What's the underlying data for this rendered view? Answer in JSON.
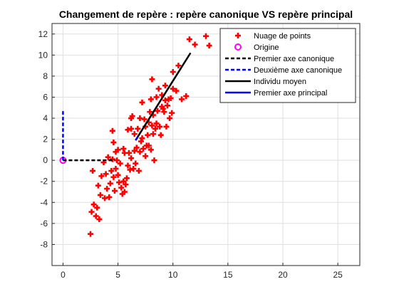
{
  "colors": {
    "points": "#ff0000",
    "origin": "#ff00ff",
    "canonical_axis_1": "#000000",
    "canonical_axis_2": "#0000ff",
    "mean_individual": "#000000",
    "principal_axis_1": "#0000ff"
  },
  "chart_data": {
    "type": "scatter",
    "title": "Changement de repère : repère canonique VS repère principal",
    "xlabel": "",
    "ylabel": "",
    "xlim": [
      -1,
      27
    ],
    "ylim": [
      -10,
      13
    ],
    "xticks": [
      0,
      5,
      10,
      15,
      20,
      25
    ],
    "yticks": [
      -8,
      -6,
      -4,
      -2,
      0,
      2,
      4,
      6,
      8,
      10,
      12
    ],
    "grid": true,
    "legend_position": "top-right",
    "legend": [
      {
        "label": "Nuage de points",
        "style": "plus",
        "color": "#ff0000"
      },
      {
        "label": "Origine",
        "style": "circle",
        "color": "#ff00ff"
      },
      {
        "label": "Premier axe canonique",
        "style": "dashed",
        "color": "#000000"
      },
      {
        "label": "Deuxième axe canonique",
        "style": "dashed",
        "color": "#0000ff"
      },
      {
        "label": "Individu moyen",
        "style": "solid",
        "color": "#000000"
      },
      {
        "label": "Premier axe principal",
        "style": "solid",
        "color": "#0000ff"
      }
    ],
    "series": [
      {
        "name": "Nuage de points",
        "style": "plus",
        "points": [
          [
            2.5,
            -7.0
          ],
          [
            2.6,
            -4.9
          ],
          [
            2.7,
            -1.0
          ],
          [
            2.8,
            -4.2
          ],
          [
            3.0,
            -5.3
          ],
          [
            3.1,
            -4.5
          ],
          [
            3.2,
            -2.4
          ],
          [
            3.3,
            -5.6
          ],
          [
            3.4,
            -3.3
          ],
          [
            3.5,
            -1.5
          ],
          [
            3.7,
            -0.2
          ],
          [
            3.8,
            -3.6
          ],
          [
            3.9,
            -1.3
          ],
          [
            4.0,
            -2.7
          ],
          [
            4.1,
            0.3
          ],
          [
            4.2,
            -3.5
          ],
          [
            4.3,
            -2.2
          ],
          [
            4.4,
            -1.0
          ],
          [
            4.5,
            0.1
          ],
          [
            4.6,
            -1.6
          ],
          [
            4.7,
            -2.9
          ],
          [
            4.8,
            -0.8
          ],
          [
            4.5,
            2.8
          ],
          [
            4.6,
            1.7
          ],
          [
            4.8,
            0.8
          ],
          [
            4.9,
            0.0
          ],
          [
            5.0,
            -1.4
          ],
          [
            5.1,
            -2.1
          ],
          [
            5.0,
            1.0
          ],
          [
            5.2,
            -0.3
          ],
          [
            5.3,
            -2.6
          ],
          [
            5.4,
            -3.2
          ],
          [
            5.5,
            -2.0
          ],
          [
            5.6,
            -3.0
          ],
          [
            5.5,
            1.1
          ],
          [
            5.6,
            0.7
          ],
          [
            5.7,
            -2.3
          ],
          [
            5.8,
            -1.7
          ],
          [
            5.9,
            -0.5
          ],
          [
            5.9,
            2.9
          ],
          [
            6.0,
            0.7
          ],
          [
            6.1,
            -0.9
          ],
          [
            6.2,
            0.2
          ],
          [
            6.2,
            3.0
          ],
          [
            6.2,
            4.0
          ],
          [
            6.3,
            4.2
          ],
          [
            6.4,
            -0.8
          ],
          [
            6.5,
            0.9
          ],
          [
            6.5,
            2.5
          ],
          [
            6.6,
            -0.3
          ],
          [
            6.7,
            1.2
          ],
          [
            6.8,
            3.0
          ],
          [
            6.9,
            -1.0
          ],
          [
            7.0,
            0.8
          ],
          [
            7.0,
            4.0
          ],
          [
            7.1,
            1.8
          ],
          [
            7.2,
            2.1
          ],
          [
            7.2,
            5.5
          ],
          [
            7.3,
            1.1
          ],
          [
            7.4,
            3.9
          ],
          [
            7.5,
            0.4
          ],
          [
            7.5,
            3.2
          ],
          [
            7.6,
            1.4
          ],
          [
            7.7,
            2.4
          ],
          [
            7.8,
            1.4
          ],
          [
            7.8,
            3.6
          ],
          [
            7.9,
            4.6
          ],
          [
            8.0,
            1.0
          ],
          [
            8.0,
            5.8
          ],
          [
            8.1,
            3.3
          ],
          [
            8.1,
            7.7
          ],
          [
            8.2,
            2.5
          ],
          [
            8.2,
            4.3
          ],
          [
            8.3,
            0.0
          ],
          [
            8.4,
            3.0
          ],
          [
            8.5,
            6.0
          ],
          [
            8.5,
            3.5
          ],
          [
            8.6,
            4.7
          ],
          [
            8.7,
            6.8
          ],
          [
            8.8,
            3.2
          ],
          [
            8.9,
            2.4
          ],
          [
            9.0,
            5.1
          ],
          [
            9.0,
            6.2
          ],
          [
            9.1,
            4.9
          ],
          [
            9.2,
            4.6
          ],
          [
            9.3,
            5.7
          ],
          [
            9.3,
            7.1
          ],
          [
            9.4,
            3.2
          ],
          [
            9.5,
            5.2
          ],
          [
            9.6,
            5.8
          ],
          [
            9.7,
            4.0
          ],
          [
            9.8,
            5.9
          ],
          [
            9.9,
            4.5
          ],
          [
            10.0,
            6.8
          ],
          [
            10.0,
            8.4
          ],
          [
            10.3,
            6.6
          ],
          [
            10.5,
            9.0
          ],
          [
            10.8,
            5.8
          ],
          [
            11.2,
            6.1
          ],
          [
            11.5,
            11.5
          ],
          [
            12.0,
            11.0
          ],
          [
            13.0,
            11.8
          ],
          [
            13.3,
            10.9
          ]
        ]
      },
      {
        "name": "Origine",
        "style": "circle",
        "points": [
          [
            0,
            0
          ]
        ]
      },
      {
        "name": "Premier axe canonique",
        "style": "dashed",
        "points": [
          [
            0,
            0
          ],
          [
            4.7,
            0
          ]
        ]
      },
      {
        "name": "Deuxième axe canonique",
        "style": "dashed",
        "points": [
          [
            0,
            0
          ],
          [
            0,
            4.7
          ]
        ]
      },
      {
        "name": "Individu moyen",
        "style": "solid",
        "points": [
          [
            6.6,
            1.9
          ],
          [
            11.6,
            10.2
          ]
        ]
      },
      {
        "name": "Premier axe principal",
        "style": "solid",
        "points": [
          [
            6.6,
            1.9
          ],
          [
            6.8,
            2.2
          ]
        ]
      }
    ]
  }
}
